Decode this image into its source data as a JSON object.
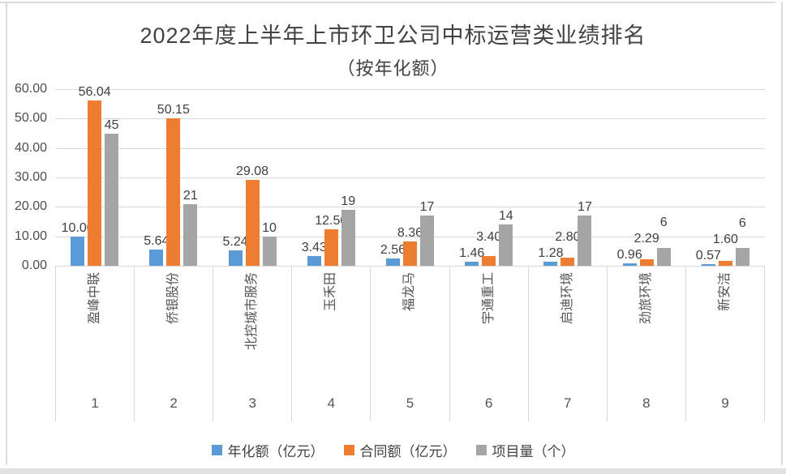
{
  "title": "2022年度上半年上市环卫公司中标运营类业绩排名",
  "subtitle": "（按年化额）",
  "colors": {
    "series_blue": "#5B9BD5",
    "series_orange": "#ED7D31",
    "series_gray": "#A5A5A5",
    "gridline": "#D9D9D9",
    "text": "#404040",
    "frame": "#DBDBDB"
  },
  "chart_data": {
    "type": "bar",
    "title": "2022年度上半年上市环卫公司中标运营类业绩排名（按年化额）",
    "categories": [
      "盈峰中联",
      "侨银股份",
      "北控城市服务",
      "玉禾田",
      "福龙马",
      "宇通重工",
      "启迪环境",
      "劲旅环境",
      "新安洁"
    ],
    "rank_labels": [
      "1",
      "2",
      "3",
      "4",
      "5",
      "6",
      "7",
      "8",
      "9"
    ],
    "series": [
      {
        "name": "年化额（亿元）",
        "color": "#5B9BD5",
        "values": [
          10.0,
          5.64,
          5.24,
          3.43,
          2.56,
          1.46,
          1.28,
          0.96,
          0.57
        ],
        "labels": [
          "10.00",
          "5.64",
          "5.24",
          "3.43",
          "2.56",
          "1.46",
          "1.28",
          "0.96",
          "0.57"
        ]
      },
      {
        "name": "合同额（亿元）",
        "color": "#ED7D31",
        "values": [
          56.04,
          50.15,
          29.08,
          12.5,
          8.36,
          3.4,
          2.8,
          2.29,
          1.6
        ],
        "labels": [
          "56.04",
          "50.15",
          "29.08",
          "12.50",
          "8.36",
          "3.40",
          "2.80",
          "2.29",
          "1.60"
        ]
      },
      {
        "name": "项目量（个）",
        "color": "#A5A5A5",
        "values": [
          45,
          21,
          10,
          19,
          17,
          14,
          17,
          6,
          6
        ],
        "labels": [
          "45",
          "21",
          "10",
          "19",
          "17",
          "14",
          "17",
          "6",
          "6"
        ]
      }
    ],
    "ylim": [
      0,
      60
    ],
    "ytick_labels": [
      "60.00",
      "50.00",
      "40.00",
      "30.00",
      "20.00",
      "10.00",
      "0.00"
    ],
    "grid": true,
    "legend_position": "bottom"
  }
}
